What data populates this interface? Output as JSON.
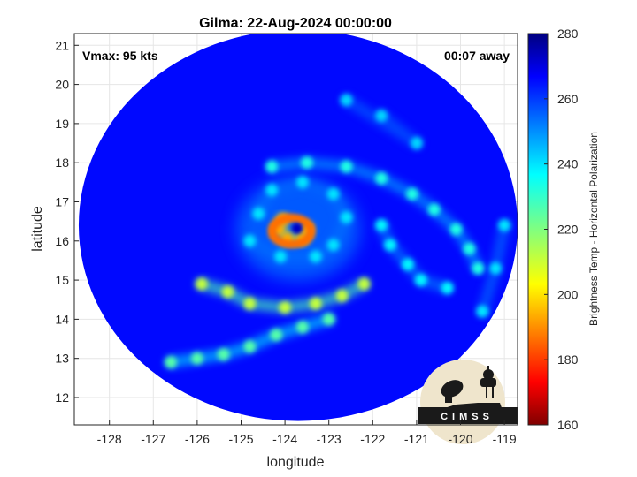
{
  "chart_data": {
    "type": "heatmap",
    "title": "Gilma: 22-Aug-2024 00:00:00",
    "xlabel": "longitude",
    "ylabel": "latitude",
    "xlim": [
      -128.8,
      -118.7
    ],
    "ylim": [
      11.3,
      21.3
    ],
    "xticks": [
      -128,
      -127,
      -126,
      -125,
      -124,
      -123,
      -122,
      -121,
      -120,
      -119
    ],
    "yticks": [
      12,
      13,
      14,
      15,
      16,
      17,
      18,
      19,
      20,
      21
    ],
    "grid": true,
    "annotations": {
      "left": "Vmax: 95 kts",
      "right": "00:07 away"
    },
    "colorbar": {
      "label": "Brightness Temp - Horizontal Polarization",
      "min": 160,
      "max": 280,
      "ticks": [
        160,
        180,
        200,
        220,
        240,
        260,
        280
      ]
    },
    "swath": {
      "center": [
        -123.7,
        16.4
      ],
      "radius_deg": 5.0
    },
    "storm_center": [
      -123.7,
      16.3
    ],
    "features": [
      {
        "name": "eyewall",
        "points": [
          [
            -124.05,
            16.55
          ],
          [
            -124.15,
            16.3
          ],
          [
            -123.95,
            16.05
          ],
          [
            -123.6,
            16.05
          ],
          [
            -123.5,
            16.3
          ]
        ],
        "value": 195
      },
      {
        "name": "eye",
        "points": [
          [
            -123.72,
            16.32
          ]
        ],
        "value": 262
      },
      {
        "name": "inner-ring",
        "points": [
          [
            -124.6,
            16.7
          ],
          [
            -124.3,
            17.3
          ],
          [
            -123.6,
            17.5
          ],
          [
            -122.9,
            17.2
          ],
          [
            -122.6,
            16.6
          ],
          [
            -122.9,
            15.9
          ],
          [
            -123.3,
            15.6
          ],
          [
            -124.1,
            15.6
          ],
          [
            -124.8,
            16.0
          ]
        ],
        "value": 238
      },
      {
        "name": "north-band",
        "points": [
          [
            -124.3,
            17.9
          ],
          [
            -123.5,
            18.0
          ],
          [
            -122.6,
            17.9
          ],
          [
            -121.8,
            17.6
          ],
          [
            -121.1,
            17.2
          ],
          [
            -120.6,
            16.8
          ],
          [
            -120.1,
            16.3
          ],
          [
            -119.8,
            15.8
          ],
          [
            -119.6,
            15.3
          ]
        ],
        "value": 232
      },
      {
        "name": "east-band",
        "points": [
          [
            -121.8,
            16.4
          ],
          [
            -121.6,
            15.9
          ],
          [
            -121.2,
            15.4
          ],
          [
            -120.9,
            15.0
          ],
          [
            -120.3,
            14.8
          ]
        ],
        "value": 236
      },
      {
        "name": "south-band",
        "points": [
          [
            -125.9,
            14.9
          ],
          [
            -125.3,
            14.7
          ],
          [
            -124.8,
            14.4
          ],
          [
            -124.0,
            14.3
          ],
          [
            -123.3,
            14.4
          ],
          [
            -122.7,
            14.6
          ],
          [
            -122.2,
            14.9
          ]
        ],
        "value": 212
      },
      {
        "name": "southwest-band",
        "points": [
          [
            -126.6,
            12.9
          ],
          [
            -126.0,
            13.0
          ],
          [
            -125.4,
            13.1
          ],
          [
            -124.8,
            13.3
          ],
          [
            -124.2,
            13.6
          ],
          [
            -123.6,
            13.8
          ],
          [
            -123.0,
            14.0
          ]
        ],
        "value": 225
      },
      {
        "name": "north-cells",
        "points": [
          [
            -121.8,
            19.2
          ],
          [
            -121.0,
            18.5
          ],
          [
            -122.6,
            19.6
          ]
        ],
        "value": 240
      },
      {
        "name": "east-edge",
        "points": [
          [
            -119.0,
            16.4
          ],
          [
            -119.2,
            15.3
          ],
          [
            -119.5,
            14.2
          ]
        ],
        "value": 238
      }
    ]
  },
  "logo": {
    "text": "CIMSS"
  }
}
